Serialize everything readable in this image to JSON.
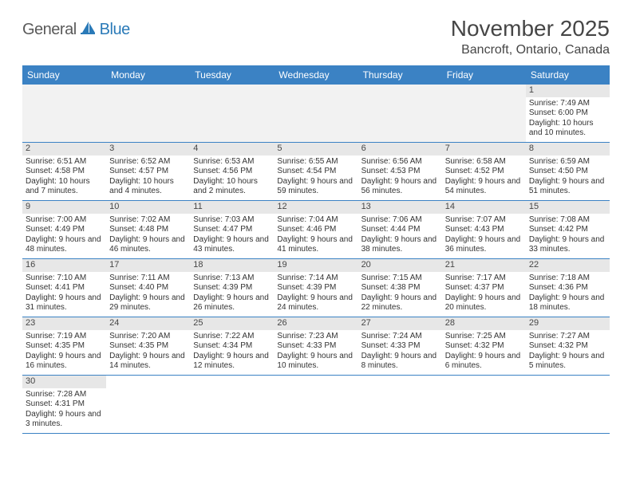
{
  "logo": {
    "part1": "General",
    "part2": "Blue"
  },
  "title": "November 2025",
  "location": "Bancroft, Ontario, Canada",
  "weekdays": [
    "Sunday",
    "Monday",
    "Tuesday",
    "Wednesday",
    "Thursday",
    "Friday",
    "Saturday"
  ],
  "colors": {
    "header_bar": "#3b82c4",
    "daynum_bg": "#e7e7e7",
    "empty_bg": "#f2f2f2",
    "logo_gray": "#5a5a5a",
    "logo_blue": "#2a7ab8",
    "text": "#464646"
  },
  "labels": {
    "sunrise": "Sunrise:",
    "sunset": "Sunset:",
    "daylight": "Daylight:"
  },
  "weeks": [
    [
      null,
      null,
      null,
      null,
      null,
      null,
      {
        "n": 1,
        "sunrise": "7:49 AM",
        "sunset": "6:00 PM",
        "daylight": "10 hours and 10 minutes."
      }
    ],
    [
      {
        "n": 2,
        "sunrise": "6:51 AM",
        "sunset": "4:58 PM",
        "daylight": "10 hours and 7 minutes."
      },
      {
        "n": 3,
        "sunrise": "6:52 AM",
        "sunset": "4:57 PM",
        "daylight": "10 hours and 4 minutes."
      },
      {
        "n": 4,
        "sunrise": "6:53 AM",
        "sunset": "4:56 PM",
        "daylight": "10 hours and 2 minutes."
      },
      {
        "n": 5,
        "sunrise": "6:55 AM",
        "sunset": "4:54 PM",
        "daylight": "9 hours and 59 minutes."
      },
      {
        "n": 6,
        "sunrise": "6:56 AM",
        "sunset": "4:53 PM",
        "daylight": "9 hours and 56 minutes."
      },
      {
        "n": 7,
        "sunrise": "6:58 AM",
        "sunset": "4:52 PM",
        "daylight": "9 hours and 54 minutes."
      },
      {
        "n": 8,
        "sunrise": "6:59 AM",
        "sunset": "4:50 PM",
        "daylight": "9 hours and 51 minutes."
      }
    ],
    [
      {
        "n": 9,
        "sunrise": "7:00 AM",
        "sunset": "4:49 PM",
        "daylight": "9 hours and 48 minutes."
      },
      {
        "n": 10,
        "sunrise": "7:02 AM",
        "sunset": "4:48 PM",
        "daylight": "9 hours and 46 minutes."
      },
      {
        "n": 11,
        "sunrise": "7:03 AM",
        "sunset": "4:47 PM",
        "daylight": "9 hours and 43 minutes."
      },
      {
        "n": 12,
        "sunrise": "7:04 AM",
        "sunset": "4:46 PM",
        "daylight": "9 hours and 41 minutes."
      },
      {
        "n": 13,
        "sunrise": "7:06 AM",
        "sunset": "4:44 PM",
        "daylight": "9 hours and 38 minutes."
      },
      {
        "n": 14,
        "sunrise": "7:07 AM",
        "sunset": "4:43 PM",
        "daylight": "9 hours and 36 minutes."
      },
      {
        "n": 15,
        "sunrise": "7:08 AM",
        "sunset": "4:42 PM",
        "daylight": "9 hours and 33 minutes."
      }
    ],
    [
      {
        "n": 16,
        "sunrise": "7:10 AM",
        "sunset": "4:41 PM",
        "daylight": "9 hours and 31 minutes."
      },
      {
        "n": 17,
        "sunrise": "7:11 AM",
        "sunset": "4:40 PM",
        "daylight": "9 hours and 29 minutes."
      },
      {
        "n": 18,
        "sunrise": "7:13 AM",
        "sunset": "4:39 PM",
        "daylight": "9 hours and 26 minutes."
      },
      {
        "n": 19,
        "sunrise": "7:14 AM",
        "sunset": "4:39 PM",
        "daylight": "9 hours and 24 minutes."
      },
      {
        "n": 20,
        "sunrise": "7:15 AM",
        "sunset": "4:38 PM",
        "daylight": "9 hours and 22 minutes."
      },
      {
        "n": 21,
        "sunrise": "7:17 AM",
        "sunset": "4:37 PM",
        "daylight": "9 hours and 20 minutes."
      },
      {
        "n": 22,
        "sunrise": "7:18 AM",
        "sunset": "4:36 PM",
        "daylight": "9 hours and 18 minutes."
      }
    ],
    [
      {
        "n": 23,
        "sunrise": "7:19 AM",
        "sunset": "4:35 PM",
        "daylight": "9 hours and 16 minutes."
      },
      {
        "n": 24,
        "sunrise": "7:20 AM",
        "sunset": "4:35 PM",
        "daylight": "9 hours and 14 minutes."
      },
      {
        "n": 25,
        "sunrise": "7:22 AM",
        "sunset": "4:34 PM",
        "daylight": "9 hours and 12 minutes."
      },
      {
        "n": 26,
        "sunrise": "7:23 AM",
        "sunset": "4:33 PM",
        "daylight": "9 hours and 10 minutes."
      },
      {
        "n": 27,
        "sunrise": "7:24 AM",
        "sunset": "4:33 PM",
        "daylight": "9 hours and 8 minutes."
      },
      {
        "n": 28,
        "sunrise": "7:25 AM",
        "sunset": "4:32 PM",
        "daylight": "9 hours and 6 minutes."
      },
      {
        "n": 29,
        "sunrise": "7:27 AM",
        "sunset": "4:32 PM",
        "daylight": "9 hours and 5 minutes."
      }
    ],
    [
      {
        "n": 30,
        "sunrise": "7:28 AM",
        "sunset": "4:31 PM",
        "daylight": "9 hours and 3 minutes."
      },
      null,
      null,
      null,
      null,
      null,
      null
    ]
  ]
}
